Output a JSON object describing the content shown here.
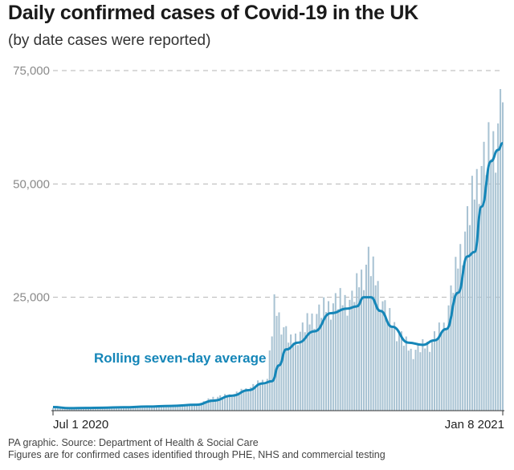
{
  "chart_data": {
    "type": "bar",
    "title": "Daily confirmed cases of Covid-19 in the UK",
    "subtitle": "(by date cases were reported)",
    "xlabel": "",
    "ylabel": "",
    "x_start": "2020-07-01",
    "x_end": "2021-01-08",
    "x_tick_labels": [
      "Jul 1 2020",
      "Jan 8 2021"
    ],
    "y_ticks": [
      25000,
      50000,
      75000
    ],
    "y_tick_labels": [
      "25,000",
      "50,000",
      "75,000"
    ],
    "ylim": [
      0,
      75000
    ],
    "grid": true,
    "colors": {
      "bars": "#a9c3d3",
      "average_line": "#1586b8",
      "grid": "#b5b5b5"
    },
    "daily_cases_anchors": [
      [
        "2020-07-01",
        600
      ],
      [
        "2020-07-15",
        500
      ],
      [
        "2020-07-31",
        800
      ],
      [
        "2020-08-15",
        1000
      ],
      [
        "2020-08-31",
        1200
      ],
      [
        "2020-09-07",
        2900
      ],
      [
        "2020-09-15",
        3500
      ],
      [
        "2020-09-22",
        4900
      ],
      [
        "2020-09-30",
        7000
      ],
      [
        "2020-10-03",
        22900
      ],
      [
        "2020-10-10",
        15000
      ],
      [
        "2020-10-20",
        21000
      ],
      [
        "2020-10-29",
        24000
      ],
      [
        "2020-11-05",
        24500
      ],
      [
        "2020-11-12",
        33470
      ],
      [
        "2020-11-20",
        21000
      ],
      [
        "2020-11-30",
        13000
      ],
      [
        "2020-12-07",
        14500
      ],
      [
        "2020-12-14",
        18500
      ],
      [
        "2020-12-21",
        35000
      ],
      [
        "2020-12-29",
        53000
      ],
      [
        "2021-01-04",
        58700
      ],
      [
        "2021-01-08",
        68000
      ]
    ],
    "series": [
      {
        "name": "Rolling seven-day average",
        "points": [
          [
            "2020-07-01",
            800
          ],
          [
            "2020-07-08",
            550
          ],
          [
            "2020-07-15",
            600
          ],
          [
            "2020-07-22",
            650
          ],
          [
            "2020-07-31",
            750
          ],
          [
            "2020-08-10",
            900
          ],
          [
            "2020-08-20",
            1050
          ],
          [
            "2020-08-31",
            1300
          ],
          [
            "2020-09-07",
            2200
          ],
          [
            "2020-09-15",
            3300
          ],
          [
            "2020-09-22",
            4500
          ],
          [
            "2020-09-28",
            6000
          ],
          [
            "2020-10-02",
            6500
          ],
          [
            "2020-10-05",
            10000
          ],
          [
            "2020-10-08",
            13500
          ],
          [
            "2020-10-13",
            15000
          ],
          [
            "2020-10-20",
            17500
          ],
          [
            "2020-10-27",
            21500
          ],
          [
            "2020-11-03",
            22500
          ],
          [
            "2020-11-07",
            23000
          ],
          [
            "2020-11-10",
            25000
          ],
          [
            "2020-11-13",
            25000
          ],
          [
            "2020-11-17",
            22000
          ],
          [
            "2020-11-22",
            18500
          ],
          [
            "2020-11-29",
            15000
          ],
          [
            "2020-12-05",
            14500
          ],
          [
            "2020-12-10",
            15500
          ],
          [
            "2020-12-15",
            18000
          ],
          [
            "2020-12-20",
            26000
          ],
          [
            "2020-12-24",
            34000
          ],
          [
            "2020-12-27",
            35000
          ],
          [
            "2020-12-30",
            45000
          ],
          [
            "2021-01-03",
            55000
          ],
          [
            "2021-01-06",
            57500
          ],
          [
            "2021-01-08",
            59000
          ]
        ]
      }
    ]
  },
  "footer": {
    "source": "PA graphic. Source: Department of Health & Social Care",
    "note": "Figures are for confirmed cases identified through PHE, NHS and commercial testing"
  }
}
